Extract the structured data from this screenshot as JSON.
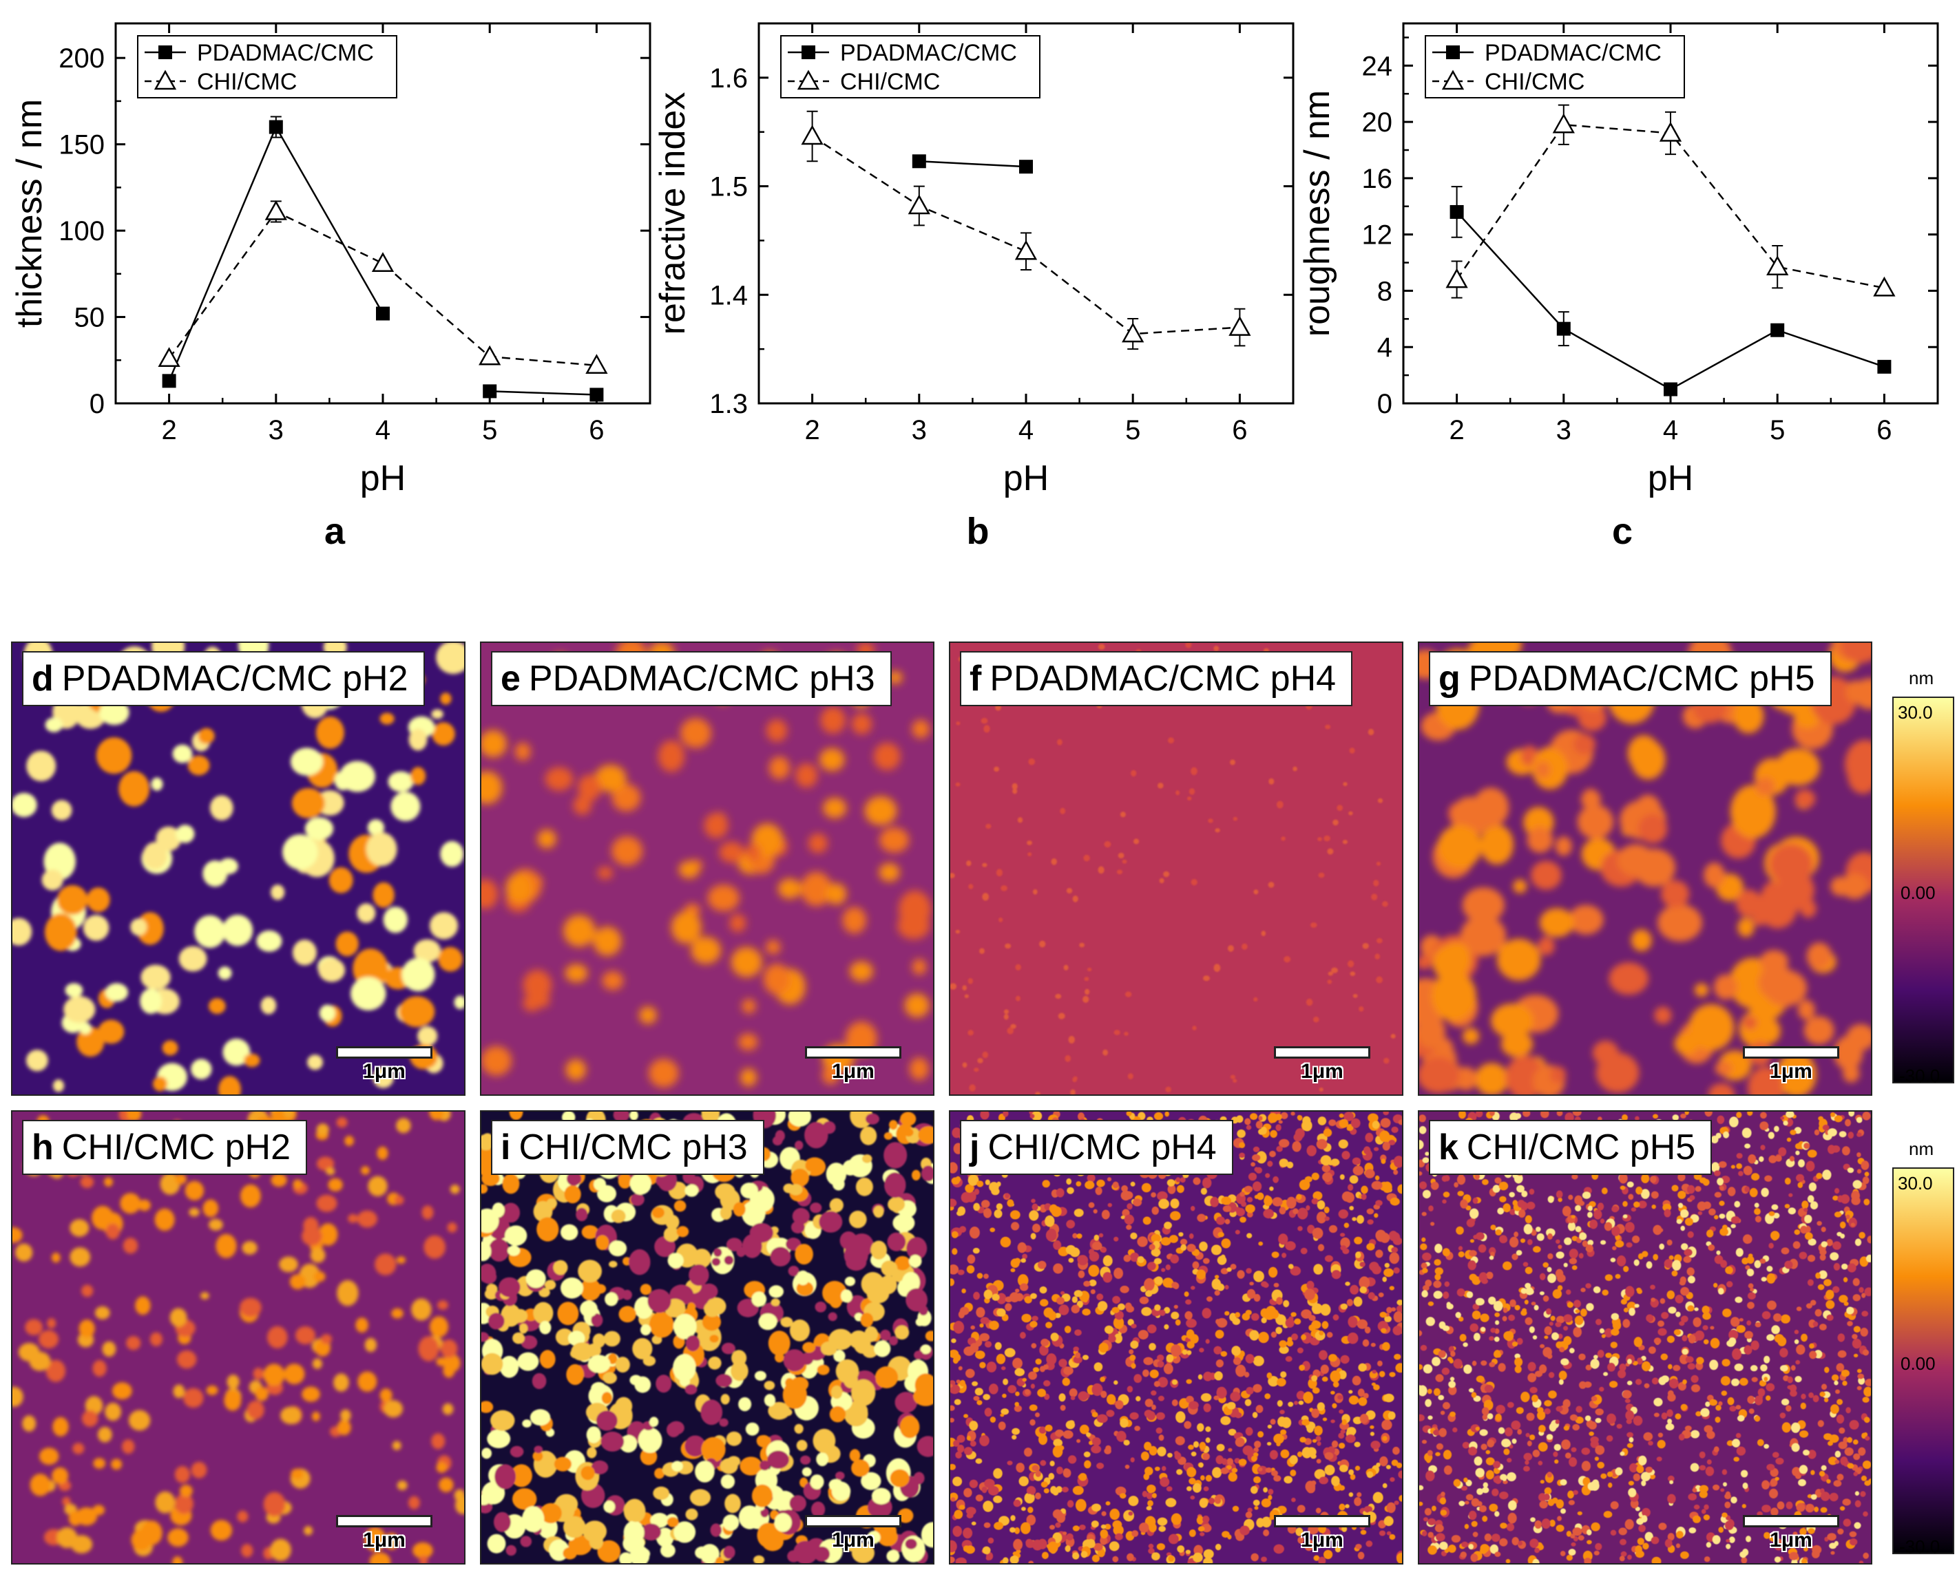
{
  "chart_data": [
    {
      "type": "line",
      "panel": "a",
      "xlabel": "pH",
      "ylabel": "thickness / nm",
      "xlim": [
        1.5,
        6.5
      ],
      "ylim": [
        0,
        220
      ],
      "xticks": [
        2,
        3,
        4,
        5,
        6
      ],
      "yticks": [
        0,
        50,
        100,
        150,
        200
      ],
      "legend_position": "top-left",
      "series": [
        {
          "name": "PDADMAC/CMC",
          "marker": "square",
          "line": "solid",
          "segments": [
            [
              {
                "x": 2,
                "y": 13
              },
              {
                "x": 3,
                "y": 160
              },
              {
                "x": 4,
                "y": 52
              }
            ],
            [
              {
                "x": 5,
                "y": 7
              },
              {
                "x": 6,
                "y": 5
              }
            ]
          ],
          "errors": [
            {
              "x": 3,
              "y": 160,
              "err": 6
            }
          ]
        },
        {
          "name": "CHI/CMC",
          "marker": "triangle",
          "line": "dashed",
          "segments": [
            [
              {
                "x": 2,
                "y": 26
              },
              {
                "x": 3,
                "y": 111
              },
              {
                "x": 4,
                "y": 81
              },
              {
                "x": 5,
                "y": 27
              },
              {
                "x": 6,
                "y": 22
              }
            ]
          ],
          "errors": [
            {
              "x": 3,
              "y": 111,
              "err": 6
            }
          ]
        }
      ]
    },
    {
      "type": "line",
      "panel": "b",
      "xlabel": "pH",
      "ylabel": "refractive index",
      "xlim": [
        1.5,
        6.5
      ],
      "ylim": [
        1.3,
        1.65
      ],
      "xticks": [
        2,
        3,
        4,
        5,
        6
      ],
      "yticks": [
        1.3,
        1.4,
        1.5,
        1.6
      ],
      "legend_position": "top-left",
      "series": [
        {
          "name": "PDADMAC/CMC",
          "marker": "square",
          "line": "solid",
          "segments": [
            [
              {
                "x": 3,
                "y": 1.523
              },
              {
                "x": 4,
                "y": 1.518
              }
            ]
          ],
          "errors": []
        },
        {
          "name": "CHI/CMC",
          "marker": "triangle",
          "line": "dashed",
          "segments": [
            [
              {
                "x": 2,
                "y": 1.546
              },
              {
                "x": 3,
                "y": 1.482
              },
              {
                "x": 4,
                "y": 1.44
              },
              {
                "x": 5,
                "y": 1.364
              },
              {
                "x": 6,
                "y": 1.37
              }
            ]
          ],
          "errors": [
            {
              "x": 2,
              "y": 1.546,
              "err": 0.023
            },
            {
              "x": 3,
              "y": 1.482,
              "err": 0.018
            },
            {
              "x": 4,
              "y": 1.44,
              "err": 0.017
            },
            {
              "x": 5,
              "y": 1.364,
              "err": 0.014
            },
            {
              "x": 6,
              "y": 1.37,
              "err": 0.017
            }
          ]
        }
      ]
    },
    {
      "type": "line",
      "panel": "c",
      "xlabel": "pH",
      "ylabel": "roughness / nm",
      "xlim": [
        1.5,
        6.5
      ],
      "ylim": [
        0,
        27
      ],
      "xticks": [
        2,
        3,
        4,
        5,
        6
      ],
      "yticks": [
        0,
        4,
        8,
        12,
        16,
        20,
        24
      ],
      "legend_position": "top-left",
      "series": [
        {
          "name": "PDADMAC/CMC",
          "marker": "square",
          "line": "solid",
          "segments": [
            [
              {
                "x": 2,
                "y": 13.6
              },
              {
                "x": 3,
                "y": 5.3
              },
              {
                "x": 4,
                "y": 1.0
              },
              {
                "x": 5,
                "y": 5.2
              },
              {
                "x": 6,
                "y": 2.6
              }
            ]
          ],
          "errors": [
            {
              "x": 2,
              "y": 13.6,
              "err": 1.8
            },
            {
              "x": 3,
              "y": 5.3,
              "err": 1.2
            }
          ]
        },
        {
          "name": "CHI/CMC",
          "marker": "triangle",
          "line": "dashed",
          "segments": [
            [
              {
                "x": 2,
                "y": 8.8
              },
              {
                "x": 3,
                "y": 19.8
              },
              {
                "x": 4,
                "y": 19.2
              },
              {
                "x": 5,
                "y": 9.7
              },
              {
                "x": 6,
                "y": 8.2
              }
            ]
          ],
          "errors": [
            {
              "x": 2,
              "y": 8.8,
              "err": 1.3
            },
            {
              "x": 3,
              "y": 19.8,
              "err": 1.4
            },
            {
              "x": 4,
              "y": 19.2,
              "err": 1.5
            },
            {
              "x": 5,
              "y": 9.7,
              "err": 1.5
            }
          ]
        }
      ]
    }
  ],
  "afm_images": [
    {
      "letter": "d",
      "label": "PDADMAC/CMC pH2",
      "scalebar": "1μm"
    },
    {
      "letter": "e",
      "label": "PDADMAC/CMC pH3",
      "scalebar": "1μm"
    },
    {
      "letter": "f",
      "label": "PDADMAC/CMC pH4",
      "scalebar": "1μm"
    },
    {
      "letter": "g",
      "label": "PDADMAC/CMC pH5",
      "scalebar": "1μm"
    },
    {
      "letter": "h",
      "label": "CHI/CMC pH2",
      "scalebar": "1μm"
    },
    {
      "letter": "i",
      "label": "CHI/CMC pH3",
      "scalebar": "1μm"
    },
    {
      "letter": "j",
      "label": "CHI/CMC pH4",
      "scalebar": "1μm"
    },
    {
      "letter": "k",
      "label": "CHI/CMC pH5",
      "scalebar": "1μm"
    }
  ],
  "colorbars": [
    {
      "unit": "nm",
      "max": "30.0",
      "mid": "0.00",
      "min": "-30.0"
    },
    {
      "unit": "nm",
      "max": "30.0",
      "mid": "0.00",
      "min": "-30.0"
    }
  ],
  "colors": {
    "axis": "#000000",
    "afm_dark": "#140b34",
    "afm_mid": "#a52c60",
    "afm_orange": "#f98e09",
    "afm_bright": "#fcffa4"
  }
}
